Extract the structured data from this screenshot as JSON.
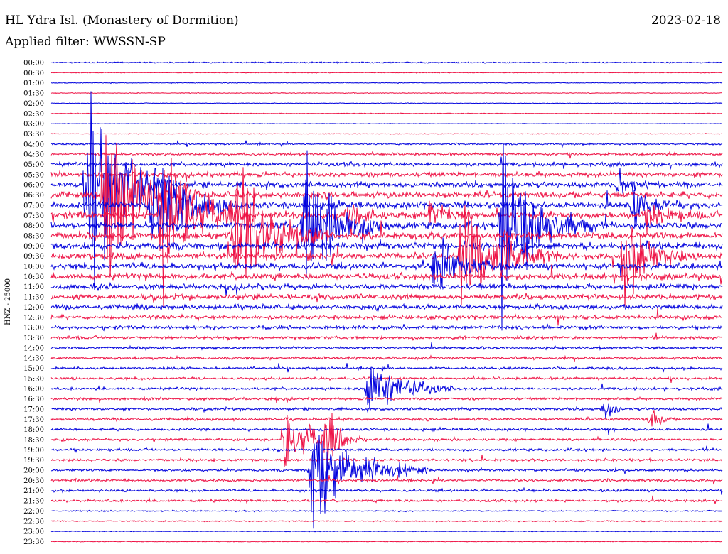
{
  "header": {
    "title": "HL Ydra Isl. (Monastery of Dormition)",
    "date": "2023-02-18",
    "filter": "Applied filter: WWSSN-SP"
  },
  "chart_data": {
    "type": "line",
    "title": "HL Ydra Isl. (Monastery of Dormition)",
    "ylabel": "HNZ - 25000",
    "rows": [
      "00:00",
      "00:30",
      "01:00",
      "01:30",
      "02:00",
      "02:30",
      "03:00",
      "03:30",
      "04:00",
      "04:30",
      "05:00",
      "05:30",
      "06:00",
      "06:30",
      "07:00",
      "07:30",
      "08:00",
      "08:30",
      "09:00",
      "09:30",
      "10:00",
      "10:30",
      "11:00",
      "11:30",
      "12:00",
      "12:30",
      "13:00",
      "13:30",
      "14:00",
      "14:30",
      "15:00",
      "15:30",
      "16:00",
      "16:30",
      "17:00",
      "17:30",
      "18:00",
      "18:30",
      "19:00",
      "19:30",
      "20:00",
      "20:30",
      "21:00",
      "21:30",
      "22:00",
      "22:30",
      "23:00",
      "23:30"
    ],
    "colors": [
      "#0000dd",
      "#ee1144"
    ],
    "noise": [
      0,
      0.3,
      0.3,
      0.3,
      0.3,
      0.3,
      0.2,
      0.3,
      0.7,
      1,
      1.5,
      2,
      2.2,
      2.4,
      2.6,
      2.8,
      2.8,
      2.8,
      2.8,
      2.8,
      2.6,
      2.4,
      2.2,
      2,
      1.8,
      1.6,
      1.4,
      1.2,
      1,
      1,
      1,
      1,
      1,
      1,
      1,
      1,
      1,
      1,
      1,
      1,
      1,
      1,
      1,
      1,
      0.5,
      0.5,
      0.3,
      0.3
    ],
    "events": [
      {
        "row": 12,
        "x": 122,
        "amp": 90,
        "dur": 40
      },
      {
        "row": 13,
        "x": 146,
        "amp": 80,
        "dur": 45
      },
      {
        "row": 14,
        "x": 214,
        "amp": 60,
        "dur": 40
      },
      {
        "row": 15,
        "x": 228,
        "amp": 70,
        "dur": 40
      },
      {
        "row": 17,
        "x": 330,
        "amp": 70,
        "dur": 45
      },
      {
        "row": 16,
        "x": 428,
        "amp": 60,
        "dur": 40
      },
      {
        "row": 20,
        "x": 612,
        "amp": 28,
        "dur": 30
      },
      {
        "row": 19,
        "x": 650,
        "amp": 55,
        "dur": 45
      },
      {
        "row": 16,
        "x": 706,
        "amp": 75,
        "dur": 45
      },
      {
        "row": 19,
        "x": 878,
        "amp": 40,
        "dur": 30
      },
      {
        "row": 32,
        "x": 518,
        "amp": 28,
        "dur": 40
      },
      {
        "row": 37,
        "x": 400,
        "amp": 35,
        "dur": 30
      },
      {
        "row": 37,
        "x": 456,
        "amp": 22,
        "dur": 20
      },
      {
        "row": 40,
        "x": 438,
        "amp": 45,
        "dur": 55
      },
      {
        "row": 15,
        "x": 488,
        "amp": 14,
        "dur": 20
      },
      {
        "row": 15,
        "x": 604,
        "amp": 14,
        "dur": 20
      },
      {
        "row": 14,
        "x": 890,
        "amp": 14,
        "dur": 25
      },
      {
        "row": 12,
        "x": 870,
        "amp": 12,
        "dur": 20
      },
      {
        "row": 15,
        "x": 912,
        "amp": 12,
        "dur": 25
      },
      {
        "row": 34,
        "x": 850,
        "amp": 12,
        "dur": 10
      },
      {
        "row": 35,
        "x": 916,
        "amp": 14,
        "dur": 10
      }
    ]
  }
}
